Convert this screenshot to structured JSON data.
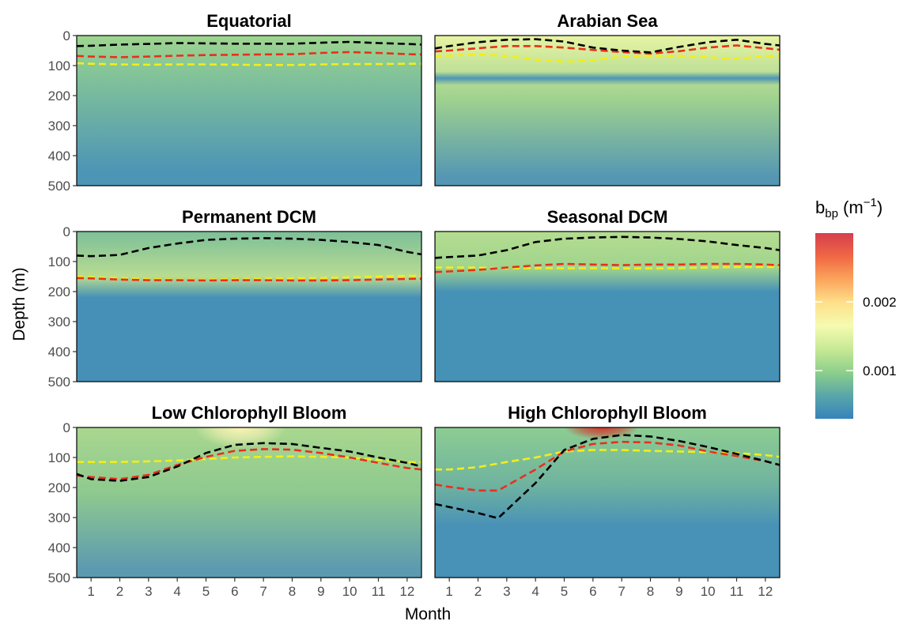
{
  "chart_data": {
    "type": "heatmap",
    "xlabel": "Month",
    "ylabel": "Depth (m)",
    "x_ticks": [
      "1",
      "2",
      "3",
      "4",
      "5",
      "6",
      "7",
      "8",
      "9",
      "10",
      "11",
      "12"
    ],
    "y_ticks": [
      "0",
      "100",
      "200",
      "300",
      "400",
      "500"
    ],
    "xlim": [
      0.5,
      12.5
    ],
    "ylim": [
      0,
      500
    ],
    "y_reversed": true,
    "legend": {
      "title": "b",
      "title_subscript": "bp",
      "title_units_open": " (m",
      "title_units_sup": "−1",
      "title_units_close": ")",
      "ticks": [
        {
          "value": 0.001,
          "label": "0.001"
        },
        {
          "value": 0.002,
          "label": "0.002"
        }
      ],
      "range": [
        0.0003,
        0.003
      ],
      "placement": "right",
      "colors": [
        "#3683bb",
        "#5aa6a9",
        "#8ccf8a",
        "#c7e995",
        "#f5fbb0",
        "#fee08b",
        "#fba55c",
        "#f06744",
        "#d53e4f"
      ]
    },
    "line_colors": {
      "black": "#000000",
      "red": "#e8301c",
      "yellow": "#f2ee1a"
    },
    "panels": [
      {
        "title": "Equatorial",
        "style": {
          "surface": "#9fd58f",
          "mid": "#86c697",
          "deep": "#4d95b5",
          "mid_depth": 110,
          "deep_depth": 450,
          "band": null
        },
        "lines": {
          "black": [
            [
              0.5,
              35
            ],
            [
              1,
              34
            ],
            [
              2,
              30
            ],
            [
              3,
              28
            ],
            [
              4,
              25
            ],
            [
              5,
              26
            ],
            [
              6,
              27
            ],
            [
              7,
              27
            ],
            [
              8,
              27
            ],
            [
              9,
              24
            ],
            [
              10,
              21
            ],
            [
              11,
              25
            ],
            [
              12,
              28
            ],
            [
              12.5,
              30
            ]
          ],
          "red": [
            [
              0.5,
              68
            ],
            [
              1,
              70
            ],
            [
              2,
              72
            ],
            [
              3,
              70
            ],
            [
              4,
              67
            ],
            [
              5,
              65
            ],
            [
              6,
              64
            ],
            [
              7,
              63
            ],
            [
              8,
              62
            ],
            [
              9,
              58
            ],
            [
              10,
              55
            ],
            [
              11,
              58
            ],
            [
              12,
              62
            ],
            [
              12.5,
              63
            ]
          ],
          "yellow": [
            [
              0.5,
              92
            ],
            [
              1,
              94
            ],
            [
              2,
              96
            ],
            [
              3,
              97
            ],
            [
              4,
              96
            ],
            [
              5,
              96
            ],
            [
              6,
              97
            ],
            [
              7,
              98
            ],
            [
              8,
              98
            ],
            [
              9,
              96
            ],
            [
              10,
              95
            ],
            [
              11,
              95
            ],
            [
              12,
              94
            ],
            [
              12.5,
              94
            ]
          ]
        }
      },
      {
        "title": "Arabian Sea",
        "style": {
          "surface": "#e8f4a3",
          "mid": "#9fd28e",
          "deep": "#5597b3",
          "mid_depth": 210,
          "deep_depth": 470,
          "band": [
            120,
            165
          ]
        },
        "lines": {
          "black": [
            [
              0.5,
              43
            ],
            [
              1,
              35
            ],
            [
              2,
              22
            ],
            [
              3,
              14
            ],
            [
              4,
              12
            ],
            [
              5,
              20
            ],
            [
              6,
              40
            ],
            [
              7,
              50
            ],
            [
              8,
              56
            ],
            [
              9,
              38
            ],
            [
              10,
              22
            ],
            [
              11,
              14
            ],
            [
              12,
              28
            ],
            [
              12.5,
              33
            ]
          ],
          "red": [
            [
              0.5,
              53
            ],
            [
              1,
              50
            ],
            [
              2,
              42
            ],
            [
              3,
              35
            ],
            [
              4,
              35
            ],
            [
              5,
              40
            ],
            [
              6,
              48
            ],
            [
              7,
              55
            ],
            [
              8,
              60
            ],
            [
              9,
              52
            ],
            [
              10,
              40
            ],
            [
              11,
              33
            ],
            [
              12,
              42
            ],
            [
              12.5,
              47
            ]
          ],
          "yellow": [
            [
              0.5,
              68
            ],
            [
              1,
              67
            ],
            [
              2,
              62
            ],
            [
              3,
              68
            ],
            [
              4,
              80
            ],
            [
              5,
              87
            ],
            [
              6,
              82
            ],
            [
              7,
              70
            ],
            [
              8,
              67
            ],
            [
              9,
              68
            ],
            [
              10,
              72
            ],
            [
              11,
              78
            ],
            [
              12,
              68
            ],
            [
              12.5,
              67
            ]
          ]
        }
      },
      {
        "title": "Permanent DCM",
        "style": {
          "surface": "#7dbf99",
          "mid": "#b8dc91",
          "deep": "#4690b8",
          "mid_depth": 150,
          "deep_depth": 220,
          "band": null
        },
        "lines": {
          "black": [
            [
              0.5,
              80
            ],
            [
              1,
              82
            ],
            [
              2,
              78
            ],
            [
              3,
              55
            ],
            [
              4,
              40
            ],
            [
              5,
              28
            ],
            [
              6,
              24
            ],
            [
              7,
              22
            ],
            [
              8,
              24
            ],
            [
              9,
              28
            ],
            [
              10,
              35
            ],
            [
              11,
              45
            ],
            [
              12,
              68
            ],
            [
              12.5,
              76
            ]
          ],
          "red": [
            [
              0.5,
              155
            ],
            [
              1,
              156
            ],
            [
              2,
              160
            ],
            [
              3,
              162
            ],
            [
              4,
              162
            ],
            [
              5,
              163
            ],
            [
              6,
              162
            ],
            [
              7,
              162
            ],
            [
              8,
              163
            ],
            [
              9,
              163
            ],
            [
              10,
              162
            ],
            [
              11,
              160
            ],
            [
              12,
              158
            ],
            [
              12.5,
              157
            ]
          ],
          "yellow": [
            [
              0.5,
              150
            ],
            [
              1,
              152
            ],
            [
              2,
              155
            ],
            [
              3,
              158
            ],
            [
              4,
              160
            ],
            [
              5,
              160
            ],
            [
              6,
              158
            ],
            [
              7,
              157
            ],
            [
              8,
              156
            ],
            [
              9,
              155
            ],
            [
              10,
              153
            ],
            [
              11,
              150
            ],
            [
              12,
              148
            ],
            [
              12.5,
              147
            ]
          ]
        }
      },
      {
        "title": "Seasonal DCM",
        "style": {
          "surface": "#b4dd90",
          "mid": "#a1d48d",
          "deep": "#4692b7",
          "mid_depth": 120,
          "deep_depth": 200,
          "band": null
        },
        "lines": {
          "black": [
            [
              0.5,
              88
            ],
            [
              1,
              85
            ],
            [
              2,
              80
            ],
            [
              3,
              62
            ],
            [
              4,
              35
            ],
            [
              5,
              24
            ],
            [
              6,
              20
            ],
            [
              7,
              18
            ],
            [
              8,
              20
            ],
            [
              9,
              25
            ],
            [
              10,
              33
            ],
            [
              11,
              45
            ],
            [
              12,
              55
            ],
            [
              12.5,
              62
            ]
          ],
          "red": [
            [
              0.5,
              135
            ],
            [
              1,
              133
            ],
            [
              2,
              128
            ],
            [
              3,
              120
            ],
            [
              4,
              113
            ],
            [
              5,
              108
            ],
            [
              6,
              110
            ],
            [
              7,
              112
            ],
            [
              8,
              110
            ],
            [
              9,
              110
            ],
            [
              10,
              108
            ],
            [
              11,
              108
            ],
            [
              12,
              110
            ],
            [
              12.5,
              112
            ]
          ],
          "yellow": [
            [
              0.5,
              120
            ],
            [
              1,
              120
            ],
            [
              2,
              120
            ],
            [
              3,
              122
            ],
            [
              4,
              122
            ],
            [
              5,
              122
            ],
            [
              6,
              122
            ],
            [
              7,
              123
            ],
            [
              8,
              123
            ],
            [
              9,
              122
            ],
            [
              10,
              120
            ],
            [
              11,
              118
            ],
            [
              12,
              118
            ],
            [
              12.5,
              118
            ]
          ]
        }
      },
      {
        "title": "Low Chlorophyll Bloom",
        "style": {
          "surface": "#a9d78f",
          "mid": "#8ec98f",
          "deep": "#5c9ab0",
          "mid_depth": 220,
          "deep_depth": 470,
          "band": null,
          "bloom": {
            "center": 6.2,
            "width": 1.6,
            "color": "#fff5b8",
            "depth": 70
          }
        },
        "lines": {
          "black": [
            [
              0.5,
              155
            ],
            [
              1,
              172
            ],
            [
              2,
              178
            ],
            [
              3,
              165
            ],
            [
              4,
              130
            ],
            [
              5,
              85
            ],
            [
              6,
              58
            ],
            [
              7,
              52
            ],
            [
              8,
              55
            ],
            [
              9,
              68
            ],
            [
              10,
              80
            ],
            [
              11,
              100
            ],
            [
              12,
              118
            ],
            [
              12.5,
              130
            ]
          ],
          "red": [
            [
              0.5,
              160
            ],
            [
              1,
              165
            ],
            [
              2,
              172
            ],
            [
              3,
              158
            ],
            [
              4,
              125
            ],
            [
              5,
              98
            ],
            [
              6,
              78
            ],
            [
              7,
              72
            ],
            [
              8,
              74
            ],
            [
              9,
              85
            ],
            [
              10,
              100
            ],
            [
              11,
              118
            ],
            [
              12,
              135
            ],
            [
              12.5,
              140
            ]
          ],
          "yellow": [
            [
              0.5,
              115
            ],
            [
              1,
              115
            ],
            [
              2,
              115
            ],
            [
              3,
              113
            ],
            [
              4,
              110
            ],
            [
              5,
              105
            ],
            [
              6,
              100
            ],
            [
              7,
              98
            ],
            [
              8,
              96
            ],
            [
              9,
              98
            ],
            [
              10,
              100
            ],
            [
              11,
              108
            ],
            [
              12,
              115
            ],
            [
              12.5,
              116
            ]
          ]
        }
      },
      {
        "title": "High Chlorophyll Bloom",
        "style": {
          "surface": "#8dcd92",
          "mid": "#6fb39f",
          "deep": "#4891b7",
          "mid_depth": 190,
          "deep_depth": 330,
          "band": null,
          "bloom": {
            "center": 6.3,
            "width": 1.3,
            "color": "#d73027",
            "depth": 40
          }
        },
        "lines": {
          "black": [
            [
              0.5,
              255
            ],
            [
              1,
              265
            ],
            [
              2,
              285
            ],
            [
              2.7,
              302
            ],
            [
              4,
              185
            ],
            [
              5,
              75
            ],
            [
              6,
              38
            ],
            [
              7,
              25
            ],
            [
              8,
              30
            ],
            [
              9,
              45
            ],
            [
              10,
              65
            ],
            [
              11,
              88
            ],
            [
              12,
              112
            ],
            [
              12.5,
              125
            ]
          ],
          "red": [
            [
              0.5,
              190
            ],
            [
              1,
              198
            ],
            [
              2,
              210
            ],
            [
              2.7,
              210
            ],
            [
              4,
              140
            ],
            [
              5,
              80
            ],
            [
              6,
              55
            ],
            [
              7,
              48
            ],
            [
              8,
              50
            ],
            [
              9,
              60
            ],
            [
              10,
              80
            ],
            [
              11,
              95
            ],
            [
              12,
              112
            ],
            [
              12.5,
              125
            ]
          ],
          "yellow": [
            [
              0.5,
              140
            ],
            [
              1,
              140
            ],
            [
              2,
              132
            ],
            [
              3,
              115
            ],
            [
              4,
              100
            ],
            [
              5,
              80
            ],
            [
              6,
              75
            ],
            [
              7,
              75
            ],
            [
              8,
              78
            ],
            [
              9,
              80
            ],
            [
              10,
              82
            ],
            [
              11,
              85
            ],
            [
              12,
              92
            ],
            [
              12.5,
              98
            ]
          ]
        }
      }
    ]
  }
}
